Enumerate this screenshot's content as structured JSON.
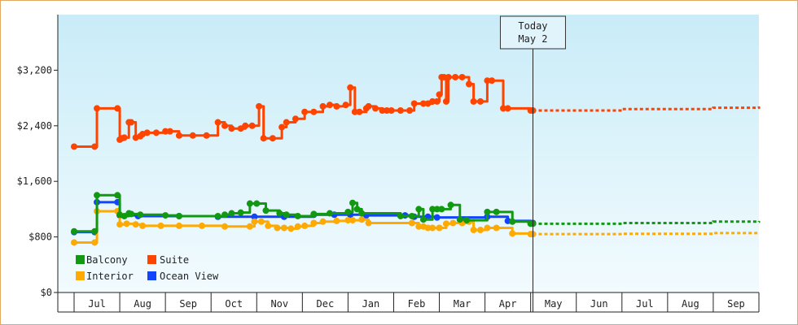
{
  "chart_data": {
    "type": "line",
    "title": "",
    "xlabel": "",
    "ylabel": "",
    "ylim": [
      0,
      4000
    ],
    "yticks": [
      0,
      800,
      1600,
      2400,
      3200
    ],
    "ytick_labels": [
      "$0",
      "$800",
      "$1,600",
      "$2,400",
      "$3,200"
    ],
    "x_domain_months": [
      0,
      15
    ],
    "months": [
      "Jul",
      "Aug",
      "Sep",
      "Oct",
      "Nov",
      "Dec",
      "Jan",
      "Feb",
      "Mar",
      "Apr",
      "May",
      "Jun",
      "Jul",
      "Aug",
      "Sep"
    ],
    "today": {
      "line1": "Today",
      "line2": "May 2",
      "x": 10.05
    },
    "legend": [
      "Balcony",
      "Suite",
      "Interior",
      "Ocean View"
    ],
    "series": [
      {
        "name": "Suite",
        "color": "#ff4400",
        "x": [
          0.0,
          0.45,
          0.5,
          0.95,
          1.0,
          1.05,
          1.1,
          1.2,
          1.25,
          1.35,
          1.45,
          1.5,
          1.6,
          1.8,
          2.0,
          2.1,
          2.3,
          2.6,
          2.9,
          3.15,
          3.3,
          3.45,
          3.65,
          3.75,
          3.9,
          4.05,
          4.15,
          4.35,
          4.55,
          4.65,
          4.85,
          5.05,
          5.25,
          5.45,
          5.6,
          5.75,
          5.95,
          6.05,
          6.15,
          6.25,
          6.4,
          6.45,
          6.6,
          6.75,
          6.85,
          6.95,
          7.15,
          7.35,
          7.45,
          7.65,
          7.75,
          7.85,
          7.95,
          8.0,
          8.05,
          8.1,
          8.15,
          8.2,
          8.35,
          8.5,
          8.65,
          8.75,
          8.9,
          9.05,
          9.15,
          9.4,
          9.5,
          10.0,
          10.05
        ],
        "y": [
          2100,
          2100,
          2650,
          2650,
          2200,
          2220,
          2230,
          2450,
          2450,
          2230,
          2250,
          2280,
          2300,
          2300,
          2320,
          2320,
          2260,
          2260,
          2260,
          2450,
          2400,
          2360,
          2360,
          2400,
          2400,
          2680,
          2220,
          2220,
          2380,
          2450,
          2500,
          2600,
          2600,
          2680,
          2700,
          2680,
          2700,
          2950,
          2600,
          2600,
          2650,
          2680,
          2650,
          2620,
          2620,
          2620,
          2620,
          2620,
          2720,
          2720,
          2720,
          2750,
          2750,
          2850,
          3100,
          3100,
          2750,
          3100,
          3100,
          3100,
          3000,
          2750,
          2750,
          3050,
          3050,
          2650,
          2650,
          2620,
          2620
        ]
      },
      {
        "name": "Balcony",
        "color": "#119911",
        "x": [
          0.0,
          0.45,
          0.5,
          0.95,
          1.0,
          1.1,
          1.2,
          1.25,
          1.45,
          2.0,
          2.3,
          3.15,
          3.3,
          3.45,
          3.65,
          3.85,
          4.0,
          4.2,
          4.5,
          4.65,
          4.9,
          5.25,
          5.6,
          6.0,
          6.1,
          6.2,
          6.3,
          7.15,
          7.4,
          7.55,
          7.65,
          7.85,
          7.95,
          8.05,
          8.25,
          8.45,
          8.6,
          9.05,
          9.25,
          9.6,
          10.0,
          10.05
        ],
        "y": [
          880,
          880,
          1400,
          1400,
          1120,
          1100,
          1140,
          1130,
          1120,
          1110,
          1100,
          1100,
          1120,
          1140,
          1150,
          1280,
          1280,
          1180,
          1140,
          1120,
          1100,
          1130,
          1140,
          1160,
          1290,
          1200,
          1140,
          1100,
          1100,
          1200,
          1050,
          1200,
          1200,
          1200,
          1260,
          1050,
          1040,
          1160,
          1160,
          1020,
          990,
          990
        ]
      },
      {
        "name": "Interior",
        "color": "#ffaa00",
        "x": [
          0.0,
          0.45,
          0.5,
          0.95,
          1.0,
          1.15,
          1.35,
          1.5,
          1.9,
          2.3,
          2.8,
          3.3,
          3.85,
          3.95,
          4.1,
          4.25,
          4.45,
          4.6,
          4.75,
          4.9,
          5.05,
          5.25,
          5.45,
          5.75,
          6.0,
          6.1,
          6.3,
          6.45,
          7.4,
          7.55,
          7.65,
          7.75,
          7.85,
          8.0,
          8.15,
          8.3,
          8.5,
          8.65,
          8.75,
          8.9,
          9.05,
          9.25,
          9.6,
          10.0,
          10.05
        ],
        "y": [
          720,
          720,
          1170,
          1170,
          980,
          990,
          980,
          960,
          960,
          960,
          960,
          950,
          950,
          1020,
          1020,
          960,
          930,
          930,
          920,
          950,
          960,
          1000,
          1020,
          1030,
          1040,
          1040,
          1050,
          1000,
          1000,
          950,
          950,
          930,
          930,
          930,
          990,
          1000,
          1000,
          1020,
          900,
          900,
          930,
          930,
          850,
          840,
          840
        ]
      },
      {
        "name": "Ocean View",
        "color": "#1144ff",
        "x": [
          0.0,
          0.45,
          0.5,
          0.95,
          1.0,
          1.4,
          2.3,
          3.15,
          3.95,
          4.6,
          5.25,
          5.7,
          6.05,
          6.4,
          7.25,
          7.45,
          7.75,
          7.95,
          9.05,
          9.5,
          10.0,
          10.05
        ],
        "y": [
          870,
          870,
          1300,
          1300,
          1110,
          1100,
          1100,
          1090,
          1090,
          1090,
          1120,
          1120,
          1120,
          1110,
          1110,
          1090,
          1090,
          1080,
          1090,
          1030,
          1000,
          1000
        ]
      }
    ],
    "forecast": [
      {
        "name": "Suite",
        "color": "#ff4400",
        "x": [
          10.05,
          12.0,
          14.0,
          15.0
        ],
        "y": [
          2620,
          2640,
          2660,
          2680
        ]
      },
      {
        "name": "Balcony",
        "color": "#119911",
        "x": [
          10.05,
          12.0,
          14.0,
          15.0
        ],
        "y": [
          990,
          1000,
          1020,
          1030
        ]
      },
      {
        "name": "Interior",
        "color": "#ffaa00",
        "x": [
          10.05,
          12.0,
          14.0,
          15.0
        ],
        "y": [
          840,
          845,
          855,
          865
        ]
      }
    ]
  }
}
